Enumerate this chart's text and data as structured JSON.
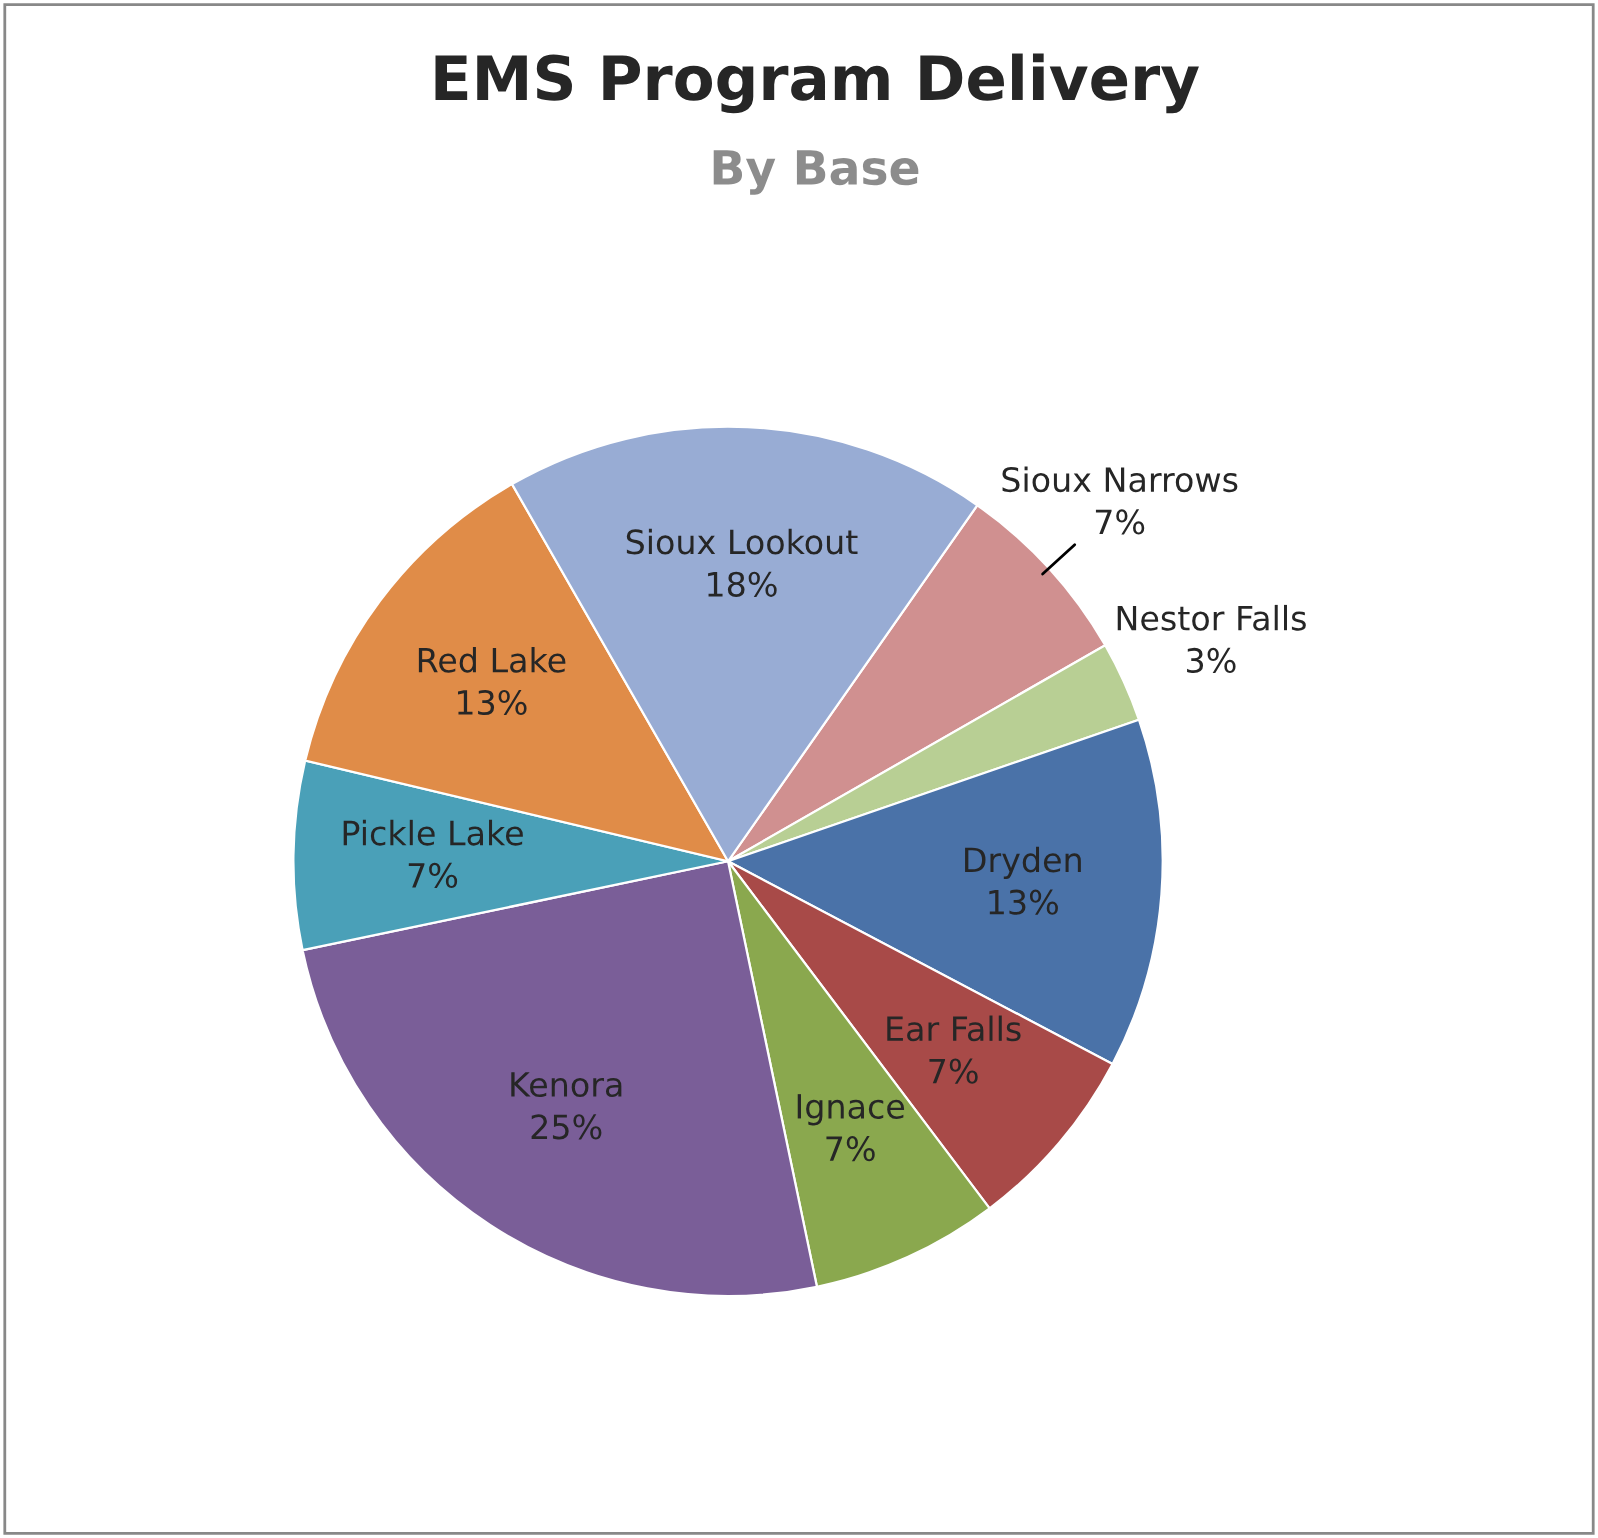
{
  "chart_data": {
    "type": "pie",
    "title": "EMS Program Delivery",
    "subtitle": "By Base",
    "categories": [
      "Sioux Narrows",
      "Nestor Falls",
      "Dryden",
      "Ear Falls",
      "Ignace",
      "Kenora",
      "Pickle Lake",
      "Red Lake",
      "Sioux Lookout"
    ],
    "values": [
      7,
      3,
      13,
      7,
      7,
      25,
      7,
      13,
      18
    ],
    "value_labels": [
      "7%",
      "3%",
      "13%",
      "7%",
      "7%",
      "25%",
      "7%",
      "13%",
      "18%"
    ],
    "colors": [
      "#d09090",
      "#b8cf94",
      "#4a72a8",
      "#a84a48",
      "#8aa84e",
      "#7a5e98",
      "#4aa0b8",
      "#e08c48",
      "#98acd4"
    ],
    "legend": false
  }
}
